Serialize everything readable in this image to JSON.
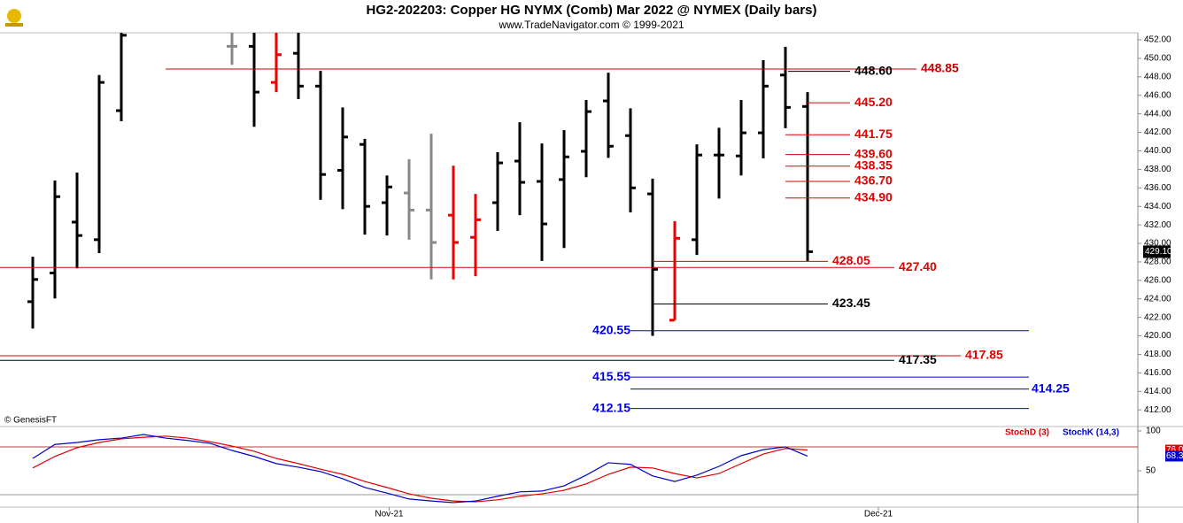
{
  "chart_data": [
    {
      "type": "ohlc",
      "title": "HG2-202203:  Copper HG NYMX (Comb) Mar 2022 @ NYMEX  (Daily bars)",
      "subtitle": "www.TradeNavigator.com © 1999-2021",
      "source": "© GenesisFT",
      "open": [
        423.7,
        426.8,
        432.3,
        430.4,
        444.35,
        null,
        null,
        null,
        null,
        451.3,
        451.3,
        447.4,
        450.55,
        447.0,
        437.9,
        440.7,
        434.4,
        435.45,
        433.6,
        433.05,
        430.65,
        434.4,
        438.9,
        436.7,
        436.9,
        439.95,
        445.4,
        441.65,
        435.35,
        421.7,
        430.4,
        439.55,
        439.45,
        441.95,
        448.2,
        444.8
      ],
      "high": [
        428.55,
        436.8,
        437.65,
        448.2,
        453,
        null,
        null,
        null,
        null,
        453,
        453,
        453,
        453,
        448.65,
        444.7,
        441.3,
        437.35,
        439.1,
        441.85,
        438.4,
        435.35,
        439.85,
        443.1,
        440.8,
        442.25,
        445.5,
        448.45,
        444.6,
        437.0,
        432.4,
        440.7,
        442.5,
        445.5,
        449.8,
        451.25,
        446.35
      ],
      "low": [
        420.8,
        424.05,
        427.3,
        428.95,
        443.2,
        null,
        null,
        null,
        null,
        449.3,
        442.6,
        446.35,
        445.6,
        434.7,
        433.7,
        430.95,
        430.85,
        430.4,
        426.1,
        426.1,
        426.45,
        431.35,
        433.05,
        428.1,
        429.5,
        437.15,
        439.25,
        433.35,
        420.0,
        421.7,
        428.75,
        434.85,
        437.35,
        439.2,
        442.45,
        428.1
      ],
      "close": [
        426.1,
        435.05,
        430.85,
        447.4,
        452.5,
        null,
        null,
        null,
        null,
        451.3,
        446.35,
        450.4,
        447.0,
        437.45,
        441.5,
        434.0,
        436.1,
        433.6,
        430.1,
        430.1,
        432.55,
        438.7,
        436.6,
        432.1,
        439.35,
        444.25,
        440.5,
        436.0,
        427.2,
        430.55,
        439.55,
        439.55,
        441.95,
        447.0,
        444.7,
        429.1
      ],
      "colors": [
        "#000",
        "#000",
        "#000",
        "#000",
        "#000",
        "#000",
        "#000",
        "#000",
        "#000",
        "#888",
        "#000",
        "#e00",
        "#000",
        "#000",
        "#000",
        "#000",
        "#000",
        "#888",
        "#888",
        "#e00",
        "#e00",
        "#000",
        "#000",
        "#000",
        "#000",
        "#000",
        "#000",
        "#000",
        "#000",
        "#e00",
        "#000",
        "#000",
        "#000",
        "#000",
        "#000",
        "#000"
      ],
      "last_price": {
        "value": 429.1,
        "label": "429.10"
      },
      "levels": [
        {
          "value": 448.85,
          "label": "448.85",
          "color": "#c00000"
        },
        {
          "value": 448.6,
          "label": "448.60",
          "color": "#000000"
        },
        {
          "value": 445.2,
          "label": "445.20",
          "color": "#e00000"
        },
        {
          "value": 441.75,
          "label": "441.75",
          "color": "#e00000"
        },
        {
          "value": 439.6,
          "label": "439.60",
          "color": "#e00000"
        },
        {
          "value": 438.35,
          "label": "438.35",
          "color": "#e00000"
        },
        {
          "value": 436.7,
          "label": "436.70",
          "color": "#e00000"
        },
        {
          "value": 434.9,
          "label": "434.90",
          "color": "#e00000"
        },
        {
          "value": 428.05,
          "label": "428.05",
          "color": "#e00000"
        },
        {
          "value": 427.4,
          "label": "427.40",
          "color": "#e00000"
        },
        {
          "value": 423.45,
          "label": "423.45",
          "color": "#000000"
        },
        {
          "value": 420.55,
          "label": "420.55",
          "color": "#0000dd"
        },
        {
          "value": 417.85,
          "label": "417.85",
          "color": "#e00000"
        },
        {
          "value": 417.35,
          "label": "417.35",
          "color": "#000000"
        },
        {
          "value": 415.55,
          "label": "415.55",
          "color": "#0000dd"
        },
        {
          "value": 414.25,
          "label": "414.25",
          "color": "#0000dd"
        },
        {
          "value": 412.15,
          "label": "412.15",
          "color": "#0000dd"
        }
      ],
      "xlim": [
        -1.48,
        49.92
      ],
      "xticks": [
        {
          "value": 16.1,
          "label": "Nov-21"
        },
        {
          "value": 38.2,
          "label": "Dec-21"
        }
      ],
      "ylim": [
        410.2,
        452.77
      ],
      "yticks": [
        {
          "value": 412,
          "label": "412.00"
        },
        {
          "value": 414,
          "label": "414.00"
        },
        {
          "value": 416,
          "label": "416.00"
        },
        {
          "value": 418,
          "label": "418.00"
        },
        {
          "value": 420,
          "label": "420.00"
        },
        {
          "value": 422,
          "label": "422.00"
        },
        {
          "value": 424,
          "label": "424.00"
        },
        {
          "value": 426,
          "label": "426.00"
        },
        {
          "value": 428,
          "label": "428.00"
        },
        {
          "value": 430,
          "label": "430.00"
        },
        {
          "value": 432,
          "label": "432.00"
        },
        {
          "value": 434,
          "label": "434.00"
        },
        {
          "value": 436,
          "label": "436.00"
        },
        {
          "value": 438,
          "label": "438.00"
        },
        {
          "value": 440,
          "label": "440.00"
        },
        {
          "value": 442,
          "label": "442.00"
        },
        {
          "value": 444,
          "label": "444.00"
        },
        {
          "value": 446,
          "label": "446.00"
        },
        {
          "value": 448,
          "label": "448.00"
        },
        {
          "value": 450,
          "label": "450.00"
        },
        {
          "value": 452,
          "label": "452.00"
        }
      ]
    },
    {
      "type": "line",
      "series": [
        {
          "name": "StochD (3)",
          "color": "#e00000",
          "last": {
            "value": 76.05,
            "label": "76.05"
          },
          "values": [
            53.5,
            68,
            79,
            85.5,
            90,
            92,
            93.5,
            91,
            86.5,
            81,
            74.5,
            65.5,
            59,
            52,
            45.5,
            36.5,
            29,
            21,
            15.5,
            12,
            11,
            13.5,
            18,
            21,
            25.5,
            33.5,
            45.5,
            54.5,
            53.5,
            46.5,
            41,
            46.5,
            59,
            71,
            78,
            76.05
          ]
        },
        {
          "name": "StochK (14,3)",
          "color": "#0000cc",
          "last": {
            "value": 68.33,
            "label": "68.33"
          },
          "values": [
            65.5,
            83,
            85.5,
            89,
            91,
            95.5,
            91,
            88,
            84.5,
            75.5,
            68,
            59,
            54.5,
            49,
            40,
            29,
            22,
            14.5,
            12,
            10,
            12,
            18,
            23.5,
            24.5,
            31,
            44.5,
            60,
            58,
            43.5,
            36.5,
            44.5,
            55.5,
            69,
            76.5,
            80,
            68.33
          ]
        }
      ],
      "reference_lines": [
        80,
        20
      ],
      "ylim": [
        4.4,
        104.4
      ],
      "yticks": [
        100,
        50
      ]
    }
  ]
}
